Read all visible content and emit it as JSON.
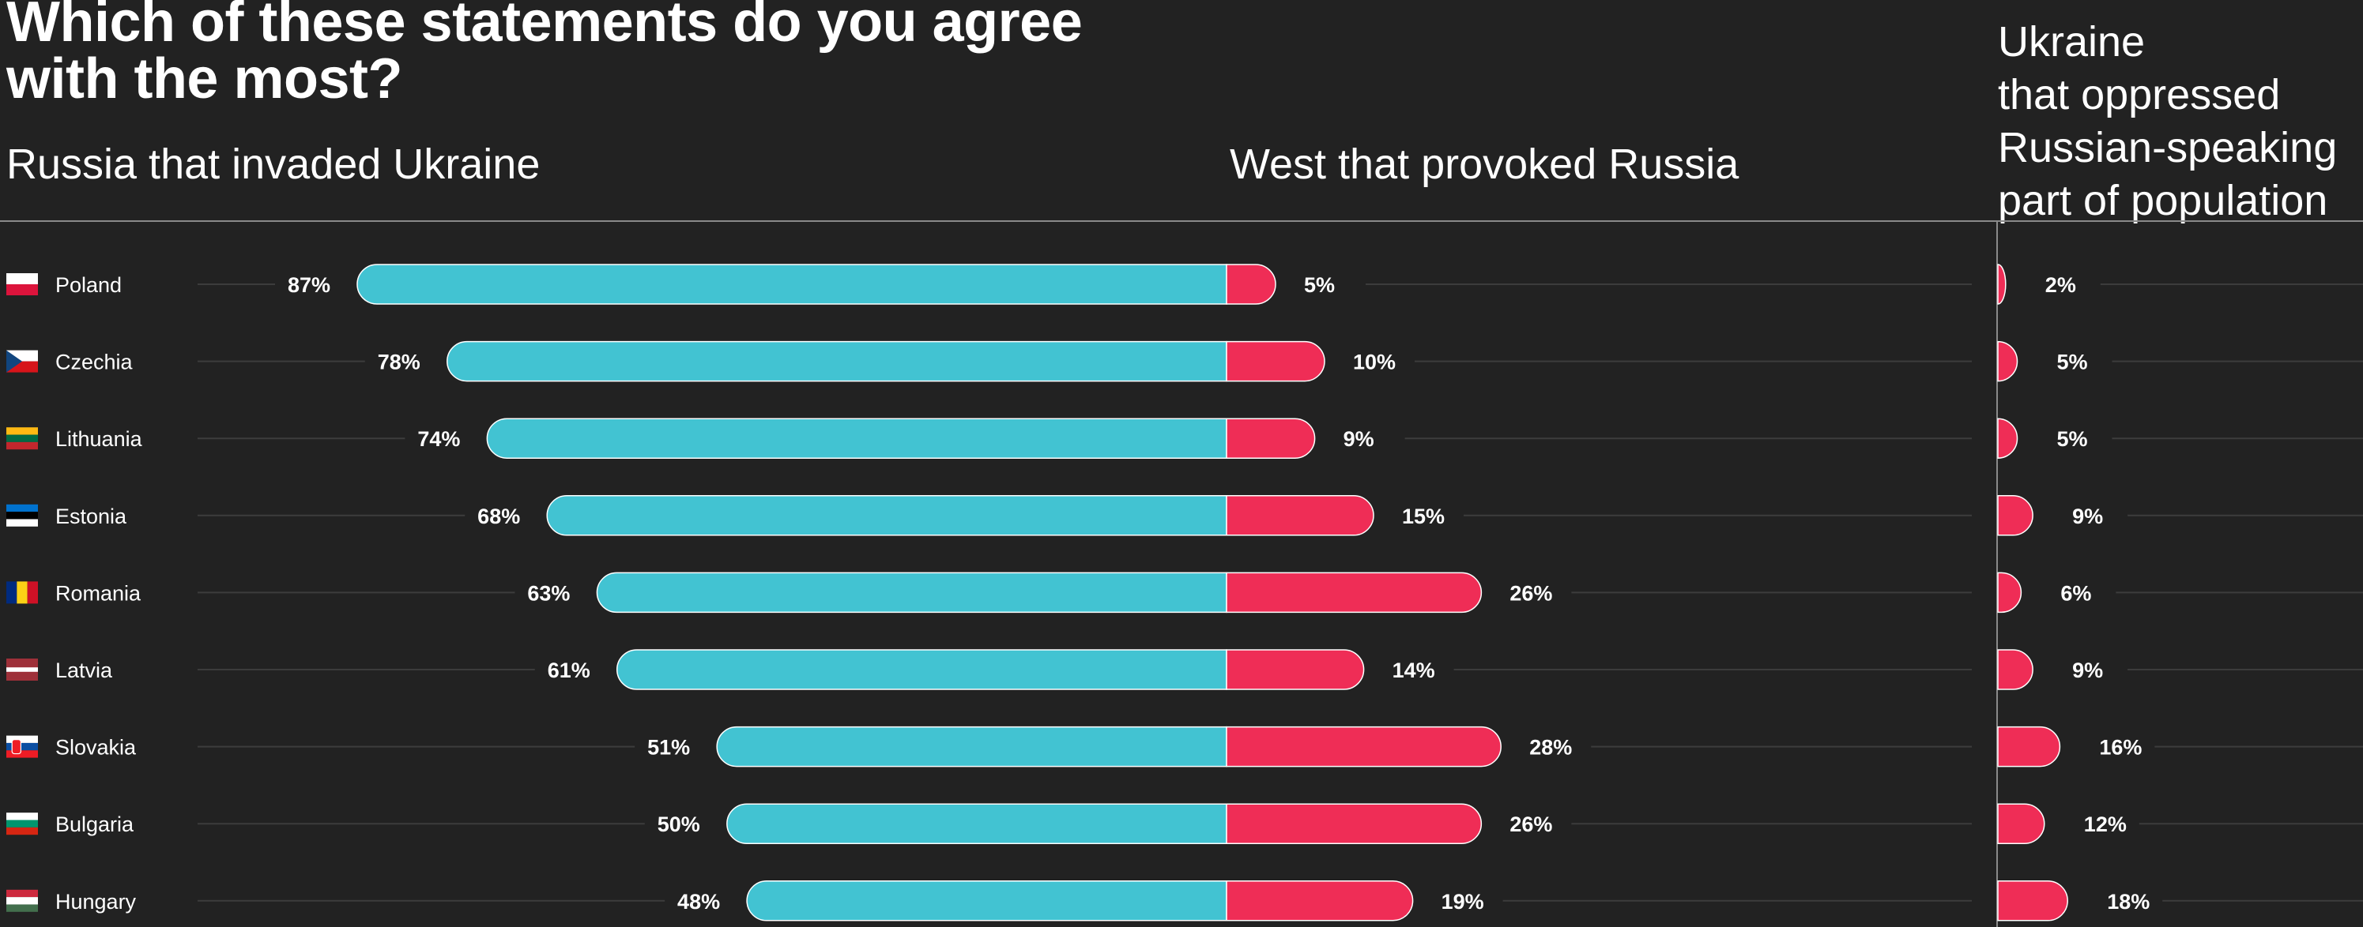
{
  "title": "Which of these statements do you agree with the most?",
  "colors": {
    "background": "#222222",
    "russia_invaded": "#42c3d2",
    "west_provoked": "#ef2d56",
    "ukraine_oppressed": "#ef2d56",
    "guide": "#3c3c3c",
    "rule": "#8a8a8a"
  },
  "chart_data": {
    "type": "bar",
    "title": "Which of these statements do you agree with the most?",
    "categories": [
      "Poland",
      "Czechia",
      "Lithuania",
      "Estonia",
      "Romania",
      "Latvia",
      "Slovakia",
      "Bulgaria",
      "Hungary"
    ],
    "series": [
      {
        "name": "Russia that invaded Ukraine",
        "values": [
          87,
          78,
          74,
          68,
          63,
          61,
          51,
          50,
          48
        ],
        "labels": [
          "87%",
          "78%",
          "74%",
          "68%",
          "63%",
          "61%",
          "51%",
          "50%",
          "48%"
        ]
      },
      {
        "name": "West that provoked Russia",
        "values": [
          5,
          10,
          9,
          15,
          26,
          14,
          28,
          26,
          19
        ],
        "labels": [
          "5%",
          "10%",
          "9%",
          "15%",
          "26%",
          "14%",
          "28%",
          "26%",
          "19%"
        ]
      },
      {
        "name": "Ukraine that oppressed Russian-speaking part of population",
        "values": [
          2,
          5,
          5,
          9,
          6,
          9,
          16,
          12,
          18
        ],
        "labels": [
          "2%",
          "5%",
          "5%",
          "9%",
          "6%",
          "9%",
          "16%",
          "12%",
          "18%"
        ]
      }
    ],
    "column_headers": {
      "russia": "Russia that invaded Ukraine",
      "west": "West that provoked Russia",
      "ukraine": "Ukraine\nthat oppressed\nRussian-speaking\npart of population"
    },
    "flags": [
      {
        "country": "Poland",
        "icon": "poland-flag-icon"
      },
      {
        "country": "Czechia",
        "icon": "czechia-flag-icon"
      },
      {
        "country": "Lithuania",
        "icon": "lithuania-flag-icon"
      },
      {
        "country": "Estonia",
        "icon": "estonia-flag-icon"
      },
      {
        "country": "Romania",
        "icon": "romania-flag-icon"
      },
      {
        "country": "Latvia",
        "icon": "latvia-flag-icon"
      },
      {
        "country": "Slovakia",
        "icon": "slovakia-flag-icon"
      },
      {
        "country": "Bulgaria",
        "icon": "bulgaria-flag-icon"
      },
      {
        "country": "Hungary",
        "icon": "hungary-flag-icon"
      }
    ],
    "grid": false,
    "legend": "column headers"
  }
}
